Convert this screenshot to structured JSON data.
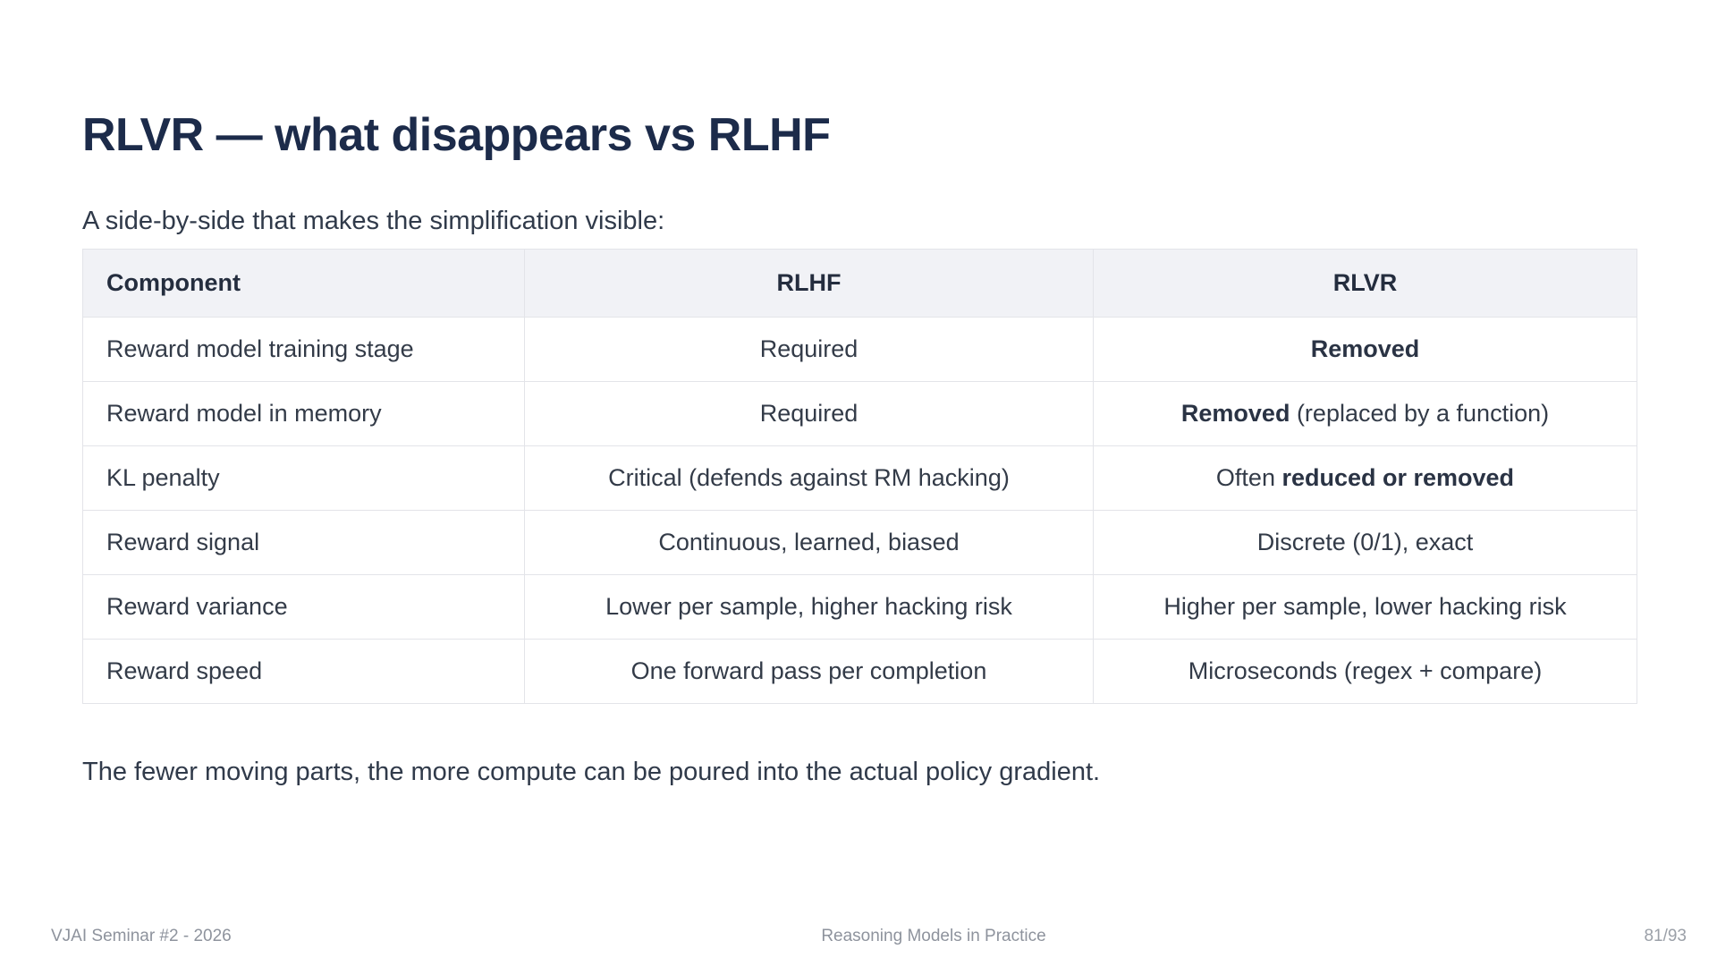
{
  "slide": {
    "title": "RLVR — what disappears vs RLHF",
    "subtitle": "A side-by-side that makes the simplification visible:",
    "closing": "The fewer moving parts, the more compute can be poured into the actual policy gradient."
  },
  "table": {
    "columns": [
      "Component",
      "RLHF",
      "RLVR"
    ],
    "rows": [
      {
        "cells": [
          [
            {
              "t": "Reward model training stage"
            }
          ],
          [
            {
              "t": "Required"
            }
          ],
          [
            {
              "t": "Removed",
              "b": true
            }
          ]
        ]
      },
      {
        "cells": [
          [
            {
              "t": "Reward model in memory"
            }
          ],
          [
            {
              "t": "Required"
            }
          ],
          [
            {
              "t": "Removed",
              "b": true
            },
            {
              "t": " (replaced by a function)"
            }
          ]
        ]
      },
      {
        "cells": [
          [
            {
              "t": "KL penalty"
            }
          ],
          [
            {
              "t": "Critical (defends against RM hacking)"
            }
          ],
          [
            {
              "t": "Often "
            },
            {
              "t": "reduced or removed",
              "b": true
            }
          ]
        ]
      },
      {
        "cells": [
          [
            {
              "t": "Reward signal"
            }
          ],
          [
            {
              "t": "Continuous, learned, biased"
            }
          ],
          [
            {
              "t": "Discrete (0/1), exact"
            }
          ]
        ]
      },
      {
        "cells": [
          [
            {
              "t": "Reward variance"
            }
          ],
          [
            {
              "t": "Lower per sample, higher hacking risk"
            }
          ],
          [
            {
              "t": "Higher per sample, lower hacking risk"
            }
          ]
        ]
      },
      {
        "cells": [
          [
            {
              "t": "Reward speed"
            }
          ],
          [
            {
              "t": "One forward pass per completion"
            }
          ],
          [
            {
              "t": "Microseconds (regex + compare)"
            }
          ]
        ]
      }
    ]
  },
  "footer": {
    "left": "VJAI Seminar #2 - 2026",
    "center": "Reasoning Models in Practice",
    "right": "81/93"
  },
  "colors": {
    "title_text": "#1c2b4a",
    "body_text": "#333b48",
    "table_header_bg": "#f1f2f6",
    "table_border": "#e3e4e9",
    "footer_text": "#8e939d",
    "background": "#ffffff"
  }
}
